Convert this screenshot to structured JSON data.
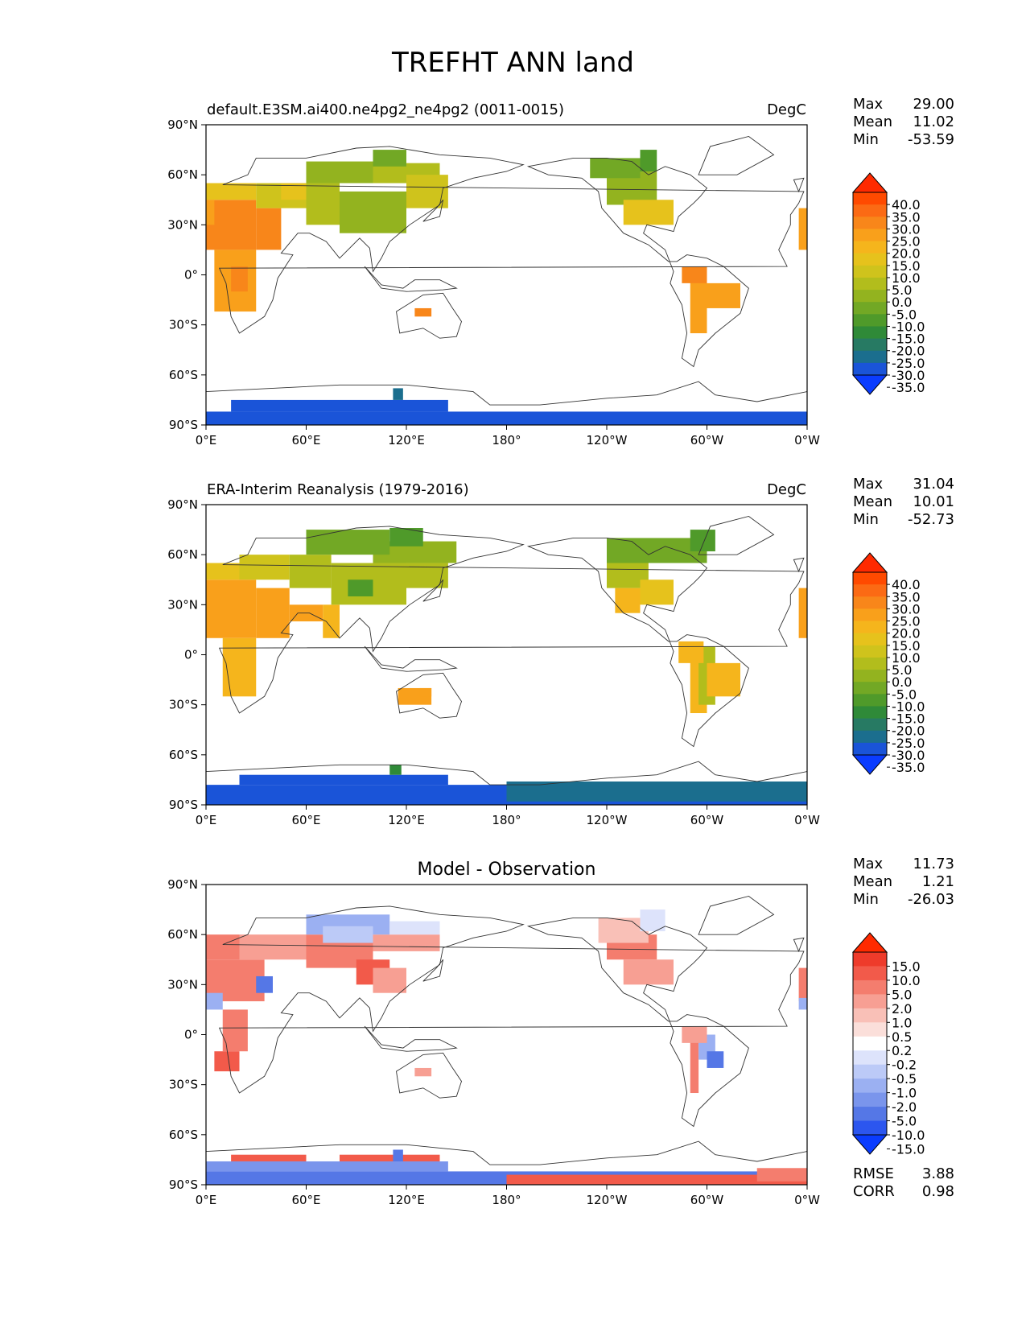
{
  "title": "TREFHT ANN land",
  "chart_data": [
    {
      "type": "heatmap",
      "title": "default.E3SM.ai400.ne4pg2_ne4pg2 (0011-0015)",
      "units": "DegC",
      "stats": {
        "Max": "29.00",
        "Mean": "11.02",
        "Min": "-53.59"
      },
      "xlim": [
        0,
        360
      ],
      "ylim": [
        -90,
        90
      ],
      "xticks": [
        "0°E",
        "60°E",
        "120°E",
        "180°",
        "120°W",
        "60°W",
        "0°W"
      ],
      "yticks": [
        "90°N",
        "60°N",
        "30°N",
        "0°",
        "30°S",
        "60°S",
        "90°S"
      ],
      "colorbar_ticks": [
        "40.0",
        "35.0",
        "30.0",
        "25.0",
        "20.0",
        "15.0",
        "10.0",
        "5.0",
        "0.0",
        "-5.0",
        "-10.0",
        "-15.0",
        "-20.0",
        "-25.0",
        "-30.0",
        "-35.0"
      ],
      "colorbar_colors": [
        "#ff2a00",
        "#ff4a00",
        "#fb6a14",
        "#f8861a",
        "#f9a01b",
        "#f5b51c",
        "#e6c21c",
        "#cfc31c",
        "#b2bd1c",
        "#93b31f",
        "#72a825",
        "#4f9a2a",
        "#2f8a38",
        "#277a63",
        "#1b6e8e",
        "#1a54d8",
        "#0a3cff"
      ]
    },
    {
      "type": "heatmap",
      "title": "ERA-Interim Reanalysis (1979-2016)",
      "units": "DegC",
      "stats": {
        "Max": "31.04",
        "Mean": "10.01",
        "Min": "-52.73"
      },
      "xlim": [
        0,
        360
      ],
      "ylim": [
        -90,
        90
      ],
      "xticks": [
        "0°E",
        "60°E",
        "120°E",
        "180°",
        "120°W",
        "60°W",
        "0°W"
      ],
      "yticks": [
        "90°N",
        "60°N",
        "30°N",
        "0°",
        "30°S",
        "60°S",
        "90°S"
      ],
      "colorbar_ticks": [
        "40.0",
        "35.0",
        "30.0",
        "25.0",
        "20.0",
        "15.0",
        "10.0",
        "5.0",
        "0.0",
        "-5.0",
        "-10.0",
        "-15.0",
        "-20.0",
        "-25.0",
        "-30.0",
        "-35.0"
      ],
      "colorbar_colors": [
        "#ff2a00",
        "#ff4a00",
        "#fb6a14",
        "#f8861a",
        "#f9a01b",
        "#f5b51c",
        "#e6c21c",
        "#cfc31c",
        "#b2bd1c",
        "#93b31f",
        "#72a825",
        "#4f9a2a",
        "#2f8a38",
        "#277a63",
        "#1b6e8e",
        "#1a54d8",
        "#0a3cff"
      ]
    },
    {
      "type": "heatmap",
      "title": "Model - Observation",
      "units": "",
      "stats": {
        "Max": "11.73",
        "Mean": "1.21",
        "Min": "-26.03"
      },
      "extra_stats": {
        "RMSE": "3.88",
        "CORR": "0.98"
      },
      "xlim": [
        0,
        360
      ],
      "ylim": [
        -90,
        90
      ],
      "xticks": [
        "0°E",
        "60°E",
        "120°E",
        "180°",
        "120°W",
        "60°W",
        "0°W"
      ],
      "yticks": [
        "90°N",
        "60°N",
        "30°N",
        "0°",
        "30°S",
        "60°S",
        "90°S"
      ],
      "colorbar_ticks": [
        "15.0",
        "10.0",
        "5.0",
        "2.0",
        "1.0",
        "0.5",
        "0.2",
        "-0.2",
        "-0.5",
        "-1.0",
        "-2.0",
        "-5.0",
        "-10.0",
        "-15.0"
      ],
      "colorbar_colors": [
        "#ff2a00",
        "#ee3b2b",
        "#f25a4a",
        "#f47d6e",
        "#f79f93",
        "#f9c0b7",
        "#fbdfda",
        "#ffffff",
        "#dde3fb",
        "#bccaf7",
        "#9bb0f2",
        "#7a95ec",
        "#5577e6",
        "#2c56ef",
        "#0a3cff"
      ]
    }
  ]
}
